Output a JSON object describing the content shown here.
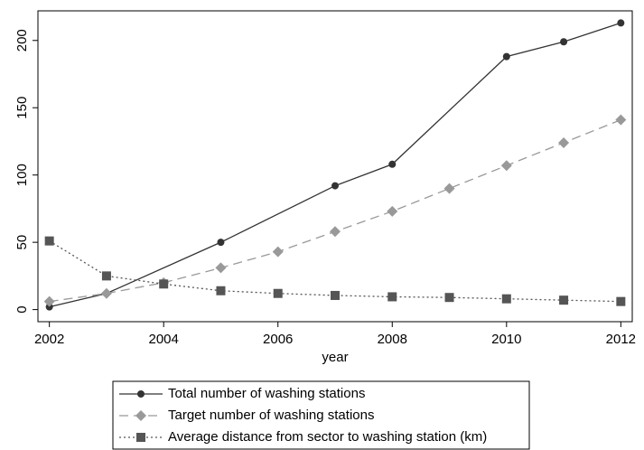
{
  "chart_data": {
    "type": "line",
    "x_label": "year",
    "xlim": [
      2001.8,
      2012.2
    ],
    "xticks": [
      2002,
      2004,
      2006,
      2008,
      2010,
      2012
    ],
    "ylim": [
      -9,
      222
    ],
    "yticks": [
      0,
      50,
      100,
      150,
      200
    ],
    "series": [
      {
        "name": "Total number of washing stations",
        "color": "#333333",
        "dash": "none",
        "marker": "circle",
        "x": [
          2002,
          2003,
          2005,
          2007,
          2008,
          2010,
          2011,
          2012
        ],
        "values": [
          2,
          12,
          50,
          92,
          108,
          188,
          199,
          213
        ]
      },
      {
        "name": "Target number of washing stations",
        "color": "#999999",
        "dash": "10,6",
        "marker": "diamond",
        "x": [
          2002,
          2003,
          2004,
          2005,
          2006,
          2007,
          2008,
          2009,
          2010,
          2011,
          2012
        ],
        "values": [
          6,
          12,
          20,
          31,
          43,
          58,
          73,
          90,
          107,
          124,
          141
        ]
      },
      {
        "name": "Average distance from sector to washing station (km)",
        "color": "#555555",
        "dash": "2,3",
        "marker": "square",
        "x": [
          2002,
          2003,
          2004,
          2005,
          2006,
          2007,
          2008,
          2009,
          2010,
          2011,
          2012
        ],
        "values": [
          51,
          25,
          19,
          14,
          12,
          10.5,
          9.5,
          9,
          8,
          7,
          6
        ]
      }
    ]
  }
}
